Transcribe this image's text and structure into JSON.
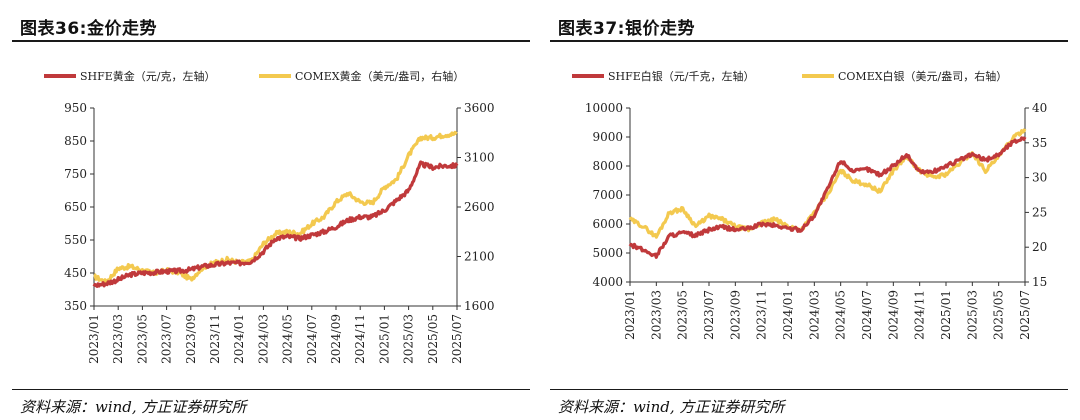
{
  "panels": [
    {
      "title": "图表36:金价走势",
      "source": "资料来源：wind, 方正证券研究所",
      "colors": {
        "series1": "#c0393b",
        "series2": "#f3c94f"
      },
      "chart_data": {
        "type": "line",
        "title": "图表36:金价走势",
        "legend_placement": "top",
        "grid": false,
        "x_tick_labels": [
          "2023/01",
          "2023/03",
          "2023/05",
          "2023/07",
          "2023/09",
          "2023/11",
          "2024/01",
          "2024/03",
          "2024/05",
          "2024/07",
          "2024/09",
          "2024/11",
          "2025/01",
          "2025/03",
          "2025/05",
          "2025/07"
        ],
        "x_range": [
          "2023-01",
          "2025-07"
        ],
        "y_left": {
          "ticks": [
            350,
            450,
            550,
            650,
            750,
            850,
            950
          ],
          "range": [
            350,
            950
          ]
        },
        "y_right": {
          "ticks": [
            1600,
            2100,
            2600,
            3100,
            3600
          ],
          "range": [
            1600,
            3600
          ]
        },
        "series": [
          {
            "name": "SHFE黄金（元/克，左轴）",
            "axis": "left",
            "x": [
              "2023-01",
              "2023-02",
              "2023-03",
              "2023-04",
              "2023-05",
              "2023-06",
              "2023-07",
              "2023-08",
              "2023-09",
              "2023-10",
              "2023-11",
              "2023-12",
              "2024-01",
              "2024-02",
              "2024-03",
              "2024-04",
              "2024-05",
              "2024-06",
              "2024-07",
              "2024-08",
              "2024-09",
              "2024-10",
              "2024-11",
              "2024-12",
              "2025-01",
              "2025-02",
              "2025-03",
              "2025-04",
              "2025-05",
              "2025-06",
              "2025-07"
            ],
            "values": [
              412,
              418,
              430,
              445,
              450,
              452,
              455,
              456,
              460,
              470,
              475,
              480,
              480,
              485,
              515,
              555,
              560,
              555,
              565,
              575,
              590,
              610,
              620,
              620,
              640,
              670,
              700,
              780,
              770,
              775,
              775
            ]
          },
          {
            "name": "COMEX黄金（美元/盎司，右轴）",
            "axis": "right",
            "x": [
              "2023-01",
              "2023-02",
              "2023-03",
              "2023-04",
              "2023-05",
              "2023-06",
              "2023-07",
              "2023-08",
              "2023-09",
              "2023-10",
              "2023-11",
              "2023-12",
              "2024-01",
              "2024-02",
              "2024-03",
              "2024-04",
              "2024-05",
              "2024-06",
              "2024-07",
              "2024-08",
              "2024-09",
              "2024-10",
              "2024-11",
              "2024-12",
              "2025-01",
              "2025-02",
              "2025-03",
              "2025-04",
              "2025-05",
              "2025-06",
              "2025-07"
            ],
            "values": [
              1900,
              1840,
              1980,
              2000,
              1960,
              1930,
              1960,
              1940,
              1870,
              1990,
              2040,
              2070,
              2040,
              2050,
              2230,
              2330,
              2350,
              2330,
              2430,
              2500,
              2650,
              2740,
              2650,
              2640,
              2800,
              2880,
              3120,
              3300,
              3300,
              3330,
              3340
            ]
          }
        ]
      }
    },
    {
      "title": "图表37:银价走势",
      "source": "资料来源：wind, 方正证券研究所",
      "colors": {
        "series1": "#c0393b",
        "series2": "#f3c94f"
      },
      "chart_data": {
        "type": "line",
        "title": "图表37:银价走势",
        "legend_placement": "top",
        "grid": false,
        "x_tick_labels": [
          "2023/01",
          "2023/03",
          "2023/05",
          "2023/07",
          "2023/09",
          "2023/11",
          "2024/01",
          "2024/03",
          "2024/05",
          "2024/07",
          "2024/09",
          "2024/11",
          "2025/01",
          "2025/03",
          "2025/05",
          "2025/07"
        ],
        "x_range": [
          "2023-01",
          "2025-07"
        ],
        "y_left": {
          "ticks": [
            4000,
            5000,
            6000,
            7000,
            8000,
            9000,
            10000
          ],
          "range": [
            4000,
            10000
          ]
        },
        "y_right": {
          "ticks": [
            15,
            20,
            25,
            30,
            35,
            40
          ],
          "range": [
            15,
            40
          ]
        },
        "series": [
          {
            "name": "SHFE白银（元/千克，左轴）",
            "axis": "left",
            "x": [
              "2023-01",
              "2023-02",
              "2023-03",
              "2023-04",
              "2023-05",
              "2023-06",
              "2023-07",
              "2023-08",
              "2023-09",
              "2023-10",
              "2023-11",
              "2023-12",
              "2024-01",
              "2024-02",
              "2024-03",
              "2024-04",
              "2024-05",
              "2024-06",
              "2024-07",
              "2024-08",
              "2024-09",
              "2024-10",
              "2024-11",
              "2024-12",
              "2025-01",
              "2025-02",
              "2025-03",
              "2025-04",
              "2025-05",
              "2025-06",
              "2025-07"
            ],
            "values": [
              5300,
              5100,
              4900,
              5600,
              5700,
              5600,
              5800,
              5900,
              5800,
              5850,
              6000,
              5950,
              5850,
              5800,
              6300,
              7200,
              8200,
              7800,
              7900,
              7700,
              8000,
              8400,
              7800,
              7800,
              8000,
              8200,
              8400,
              8200,
              8400,
              8800,
              9000
            ]
          },
          {
            "name": "COMEX白银（美元/盎司，右轴）",
            "axis": "right",
            "x": [
              "2023-01",
              "2023-02",
              "2023-03",
              "2023-04",
              "2023-05",
              "2023-06",
              "2023-07",
              "2023-08",
              "2023-09",
              "2023-10",
              "2023-11",
              "2023-12",
              "2024-01",
              "2024-02",
              "2024-03",
              "2024-04",
              "2024-05",
              "2024-06",
              "2024-07",
              "2024-08",
              "2024-09",
              "2024-10",
              "2024-11",
              "2024-12",
              "2025-01",
              "2025-02",
              "2025-03",
              "2025-04",
              "2025-05",
              "2025-06",
              "2025-07"
            ],
            "values": [
              24,
              23,
              21.5,
              25,
              25.5,
              23,
              24.5,
              24,
              23,
              22.5,
              23.5,
              24,
              23,
              22.5,
              25,
              27.5,
              31,
              29.5,
              29,
              28,
              31,
              33,
              31,
              30,
              30.5,
              32,
              33.5,
              31,
              33,
              35.5,
              37
            ]
          }
        ]
      }
    }
  ]
}
